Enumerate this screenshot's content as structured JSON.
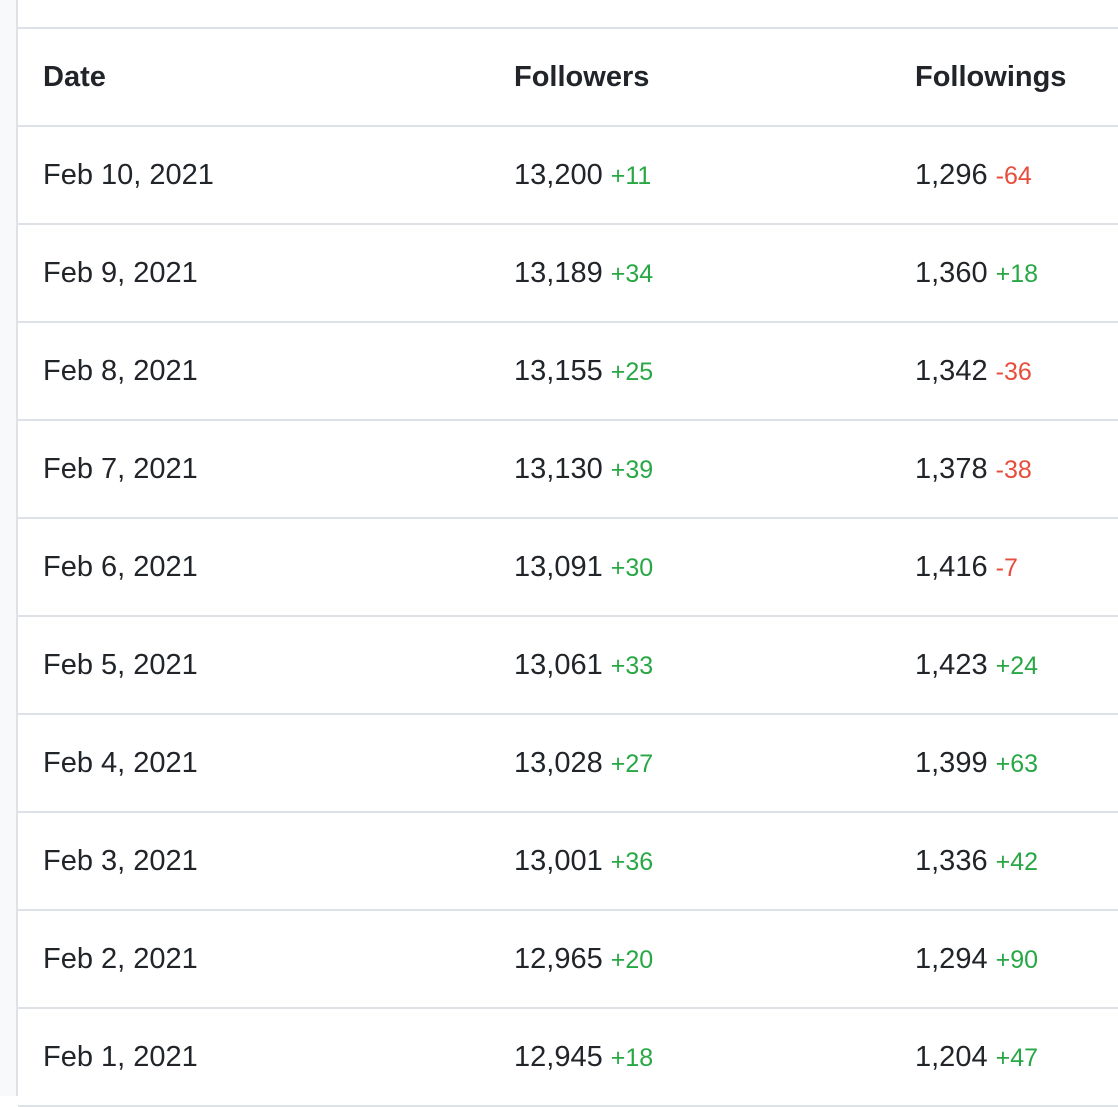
{
  "table": {
    "headers": [
      "Date",
      "Followers",
      "Followings"
    ],
    "colors": {
      "positive": "#28a745",
      "negative": "#e74c3c"
    },
    "rows": [
      {
        "date": "Feb 10, 2021",
        "followers": "13,200",
        "followers_change": "+11",
        "followers_dir": "pos",
        "followings": "1,296",
        "followings_change": "-64",
        "followings_dir": "neg"
      },
      {
        "date": "Feb 9, 2021",
        "followers": "13,189",
        "followers_change": "+34",
        "followers_dir": "pos",
        "followings": "1,360",
        "followings_change": "+18",
        "followings_dir": "pos"
      },
      {
        "date": "Feb 8, 2021",
        "followers": "13,155",
        "followers_change": "+25",
        "followers_dir": "pos",
        "followings": "1,342",
        "followings_change": "-36",
        "followings_dir": "neg"
      },
      {
        "date": "Feb 7, 2021",
        "followers": "13,130",
        "followers_change": "+39",
        "followers_dir": "pos",
        "followings": "1,378",
        "followings_change": "-38",
        "followings_dir": "neg"
      },
      {
        "date": "Feb 6, 2021",
        "followers": "13,091",
        "followers_change": "+30",
        "followers_dir": "pos",
        "followings": "1,416",
        "followings_change": "-7",
        "followings_dir": "neg"
      },
      {
        "date": "Feb 5, 2021",
        "followers": "13,061",
        "followers_change": "+33",
        "followers_dir": "pos",
        "followings": "1,423",
        "followings_change": "+24",
        "followings_dir": "pos"
      },
      {
        "date": "Feb 4, 2021",
        "followers": "13,028",
        "followers_change": "+27",
        "followers_dir": "pos",
        "followings": "1,399",
        "followings_change": "+63",
        "followings_dir": "pos"
      },
      {
        "date": "Feb 3, 2021",
        "followers": "13,001",
        "followers_change": "+36",
        "followers_dir": "pos",
        "followings": "1,336",
        "followings_change": "+42",
        "followings_dir": "pos"
      },
      {
        "date": "Feb 2, 2021",
        "followers": "12,965",
        "followers_change": "+20",
        "followers_dir": "pos",
        "followings": "1,294",
        "followings_change": "+90",
        "followings_dir": "pos"
      },
      {
        "date": "Feb 1, 2021",
        "followers": "12,945",
        "followers_change": "+18",
        "followers_dir": "pos",
        "followings": "1,204",
        "followings_change": "+47",
        "followings_dir": "pos"
      }
    ]
  }
}
